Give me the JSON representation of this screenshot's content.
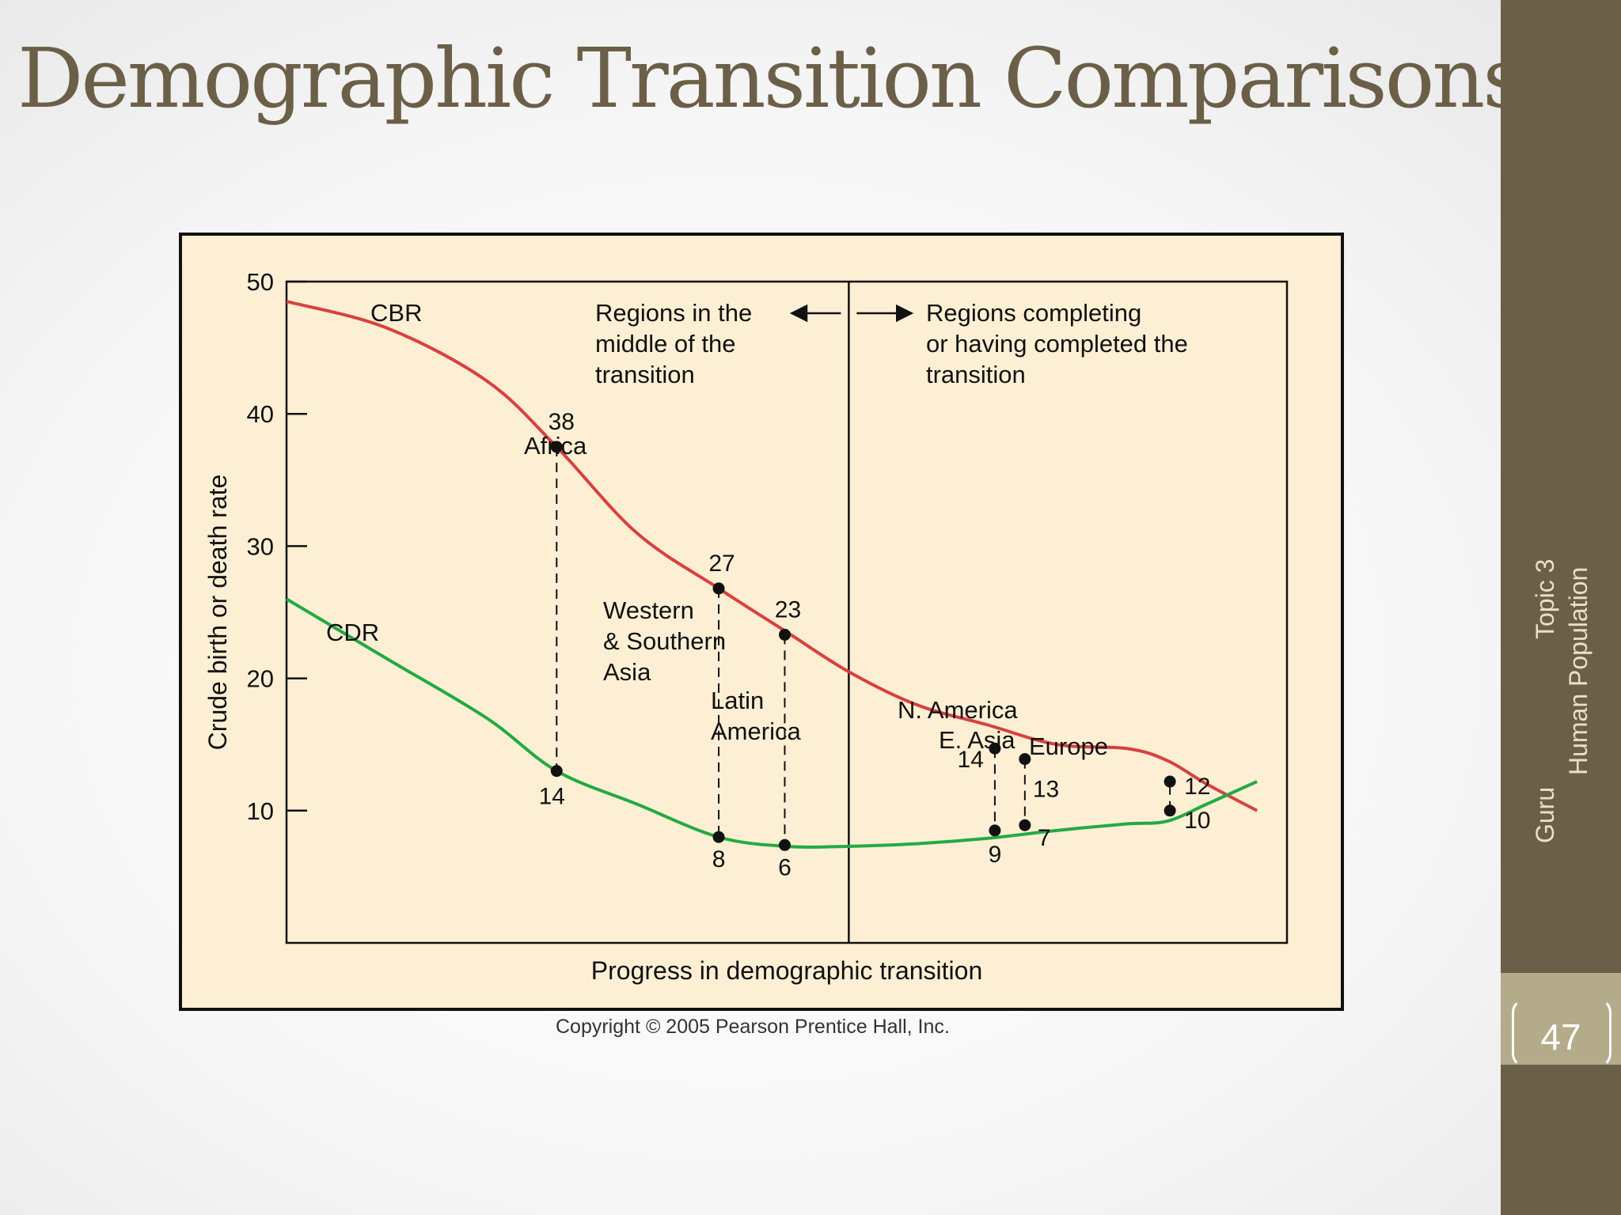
{
  "slide": {
    "title": "Demographic Transition Comparisons",
    "sidebar_topic": "Topic 3",
    "sidebar_subject": "Human Population",
    "sidebar_author": "Guru",
    "page_number": "47",
    "copyright": "Copyright © 2005 Pearson Prentice Hall, Inc."
  },
  "colors": {
    "title": "#6b5f48",
    "sidebar": "#6c5f48",
    "chart_background": "#fdefd3",
    "cbr": "#d94040",
    "cdr": "#22aa44"
  },
  "chart_data": {
    "type": "line",
    "title": "",
    "xlabel": "Progress in demographic transition",
    "ylabel": "Crude birth or death rate",
    "ylim": [
      0,
      50
    ],
    "xlim": [
      0,
      100
    ],
    "y_ticks": [
      10,
      20,
      30,
      40,
      50
    ],
    "grid": false,
    "phase_divider_x": 56.2,
    "phase_labels": {
      "middle": [
        "Regions in the",
        "middle of the",
        "transition"
      ],
      "completing": [
        "Regions completing",
        "or having completed the",
        "transition"
      ]
    },
    "series": [
      {
        "name": "CBR",
        "color": "#d94040",
        "x": [
          0,
          10,
          20,
          27,
          35,
          43.2,
          50,
          56.2,
          63,
          70,
          77,
          84,
          88,
          92,
          97
        ],
        "y": [
          48.5,
          46.5,
          42.5,
          37.5,
          31,
          26.8,
          23.5,
          20.5,
          18,
          16.5,
          15,
          14.7,
          13.8,
          12,
          10
        ]
      },
      {
        "name": "CDR",
        "color": "#22aa44",
        "x": [
          0,
          10,
          20,
          27,
          35,
          43.2,
          50,
          56,
          63,
          70,
          77,
          84,
          88,
          92,
          97
        ],
        "y": [
          26,
          21.5,
          17,
          13,
          10.5,
          8,
          7.3,
          7.3,
          7.5,
          7.9,
          8.5,
          9,
          9.2,
          10.5,
          12.2
        ]
      }
    ],
    "regions": [
      {
        "name": "Africa",
        "x": 27,
        "cbr": 38,
        "cdr": 14,
        "cbr_y": 37.5,
        "cdr_y": 13,
        "cbr_label": "38",
        "cdr_label": "14"
      },
      {
        "name": "Western & Southern Asia",
        "x": 43.2,
        "cbr": 27,
        "cdr": 8,
        "cbr_y": 26.8,
        "cdr_y": 8,
        "cbr_label": "27",
        "cdr_label": "8"
      },
      {
        "name": "Latin America",
        "x": 49.8,
        "cbr": 23,
        "cdr": 6,
        "cbr_y": 23.3,
        "cdr_y": 7.4,
        "cbr_label": "23",
        "cdr_label": "6"
      },
      {
        "name": "N. America",
        "x": 70.8,
        "cbr": 14,
        "cdr": 9,
        "cbr_y": 14.7,
        "cdr_y": 8.5,
        "cbr_label": "14",
        "cdr_label": "9"
      },
      {
        "name": "E. Asia",
        "x": 73.8,
        "cbr": 13,
        "cdr": 7,
        "cbr_y": 13.9,
        "cdr_y": 8.9,
        "cbr_label": "13",
        "cdr_label": "7"
      },
      {
        "name": "Europe",
        "x": 88.3,
        "cbr": 10,
        "cdr": 12,
        "cbr_y": 10,
        "cdr_y": 12.2,
        "cbr_label": "10",
        "cdr_label": "12"
      }
    ],
    "region_labels": {
      "africa": [
        "Africa"
      ],
      "western_southern_asia": [
        "Western",
        "& Southern",
        "Asia"
      ],
      "latin_america": [
        "Latin",
        "America"
      ],
      "n_america": [
        "N. America"
      ],
      "e_asia": [
        "E. Asia"
      ],
      "europe": [
        "Europe"
      ]
    }
  }
}
